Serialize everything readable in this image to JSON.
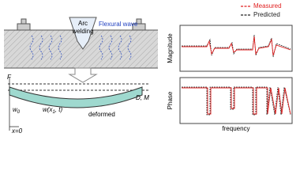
{
  "diagram": {
    "labels": {
      "arc": [
        "Arc",
        "welding"
      ],
      "flexural_wave": "Flexural wave",
      "force": "F",
      "dm": "D, M",
      "w0": {
        "base": "w",
        "sub": "0"
      },
      "wx": {
        "pre": "w(x",
        "sub": "1",
        "post": ", t)"
      },
      "deformed": "deformed",
      "origin": "x=0"
    },
    "plots": {
      "legend": [
        {
          "name": "Measured",
          "color": "#e02020"
        },
        {
          "name": "Predicted",
          "color": "#222222"
        }
      ],
      "top_ylabel": "Magnitude",
      "bottom_ylabel": "Phase",
      "xlabel": "frequency"
    }
  }
}
